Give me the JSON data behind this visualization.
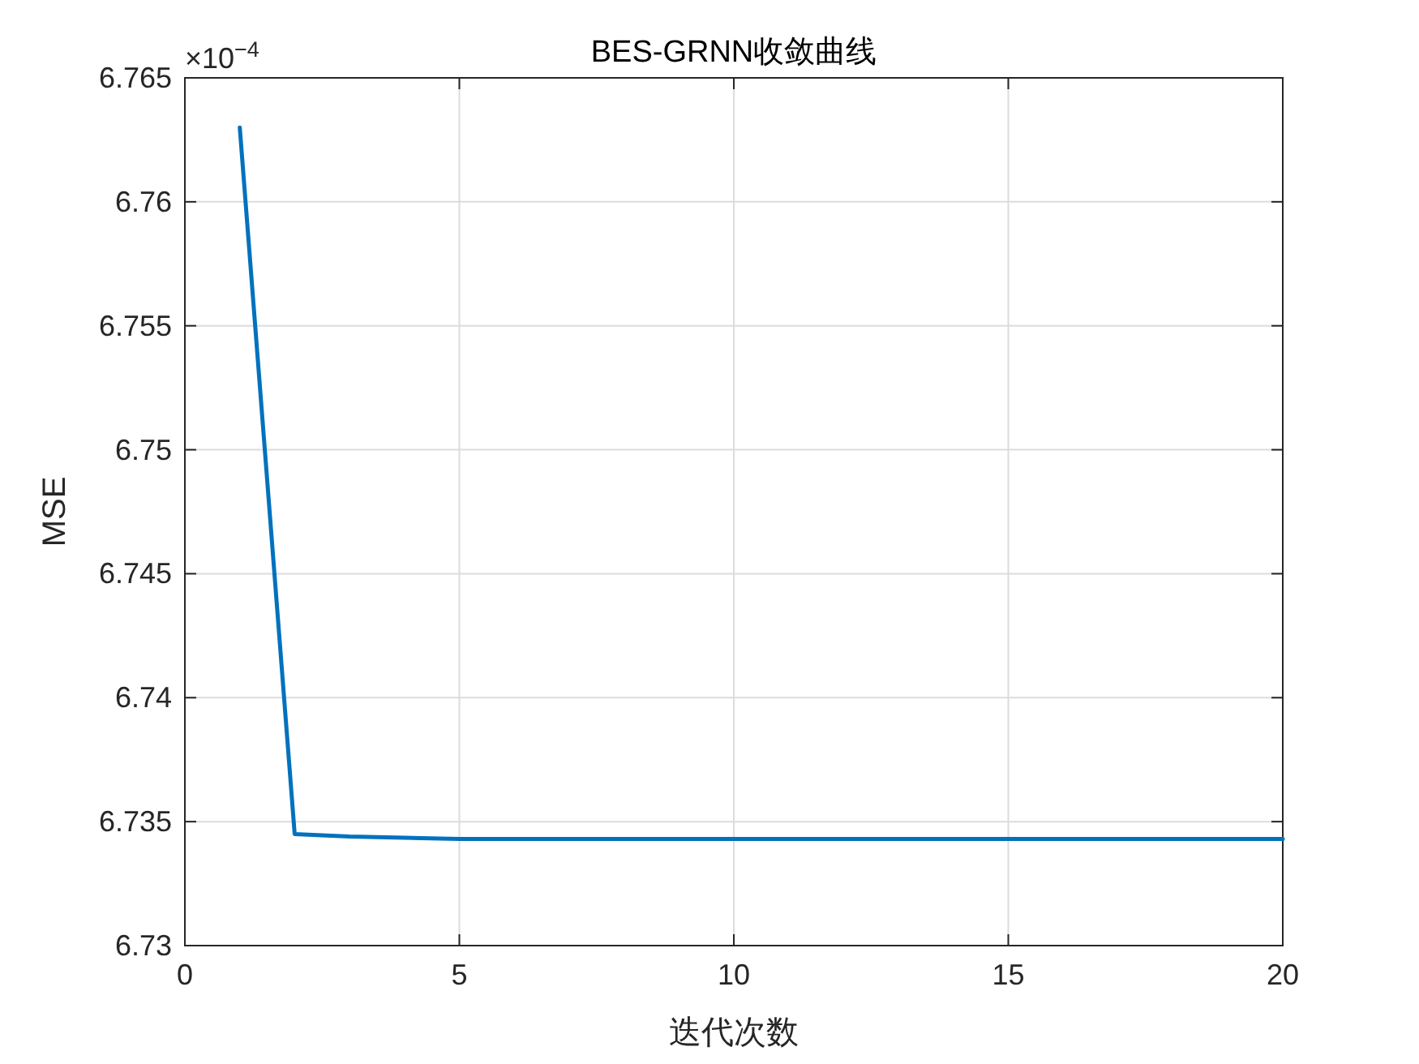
{
  "chart_data": {
    "type": "line",
    "title": "BES-GRNN收敛曲线",
    "xlabel": "迭代次数",
    "ylabel": "MSE",
    "annotations": [
      "×10$^{−4}$"
    ],
    "x": [
      1,
      2,
      3,
      4,
      5,
      6,
      7,
      8,
      9,
      10,
      11,
      12,
      13,
      14,
      15,
      16,
      17,
      18,
      19,
      20
    ],
    "series": [
      {
        "color": "#0072bd",
        "values": [
          6.763,
          6.7345,
          6.7344,
          6.73435,
          6.7343,
          6.7343,
          6.7343,
          6.7343,
          6.7343,
          6.7343,
          6.7343,
          6.7343,
          6.7343,
          6.7343,
          6.7343,
          6.7343,
          6.7343,
          6.7343,
          6.7343,
          6.7343
        ]
      }
    ],
    "xlim": [
      0,
      20
    ],
    "xticks": [
      0,
      5,
      10,
      15,
      20
    ],
    "ylim": [
      6.73,
      6.765
    ],
    "yticks": [
      6.73,
      6.735,
      6.74,
      6.745,
      6.75,
      6.755,
      6.76,
      6.765
    ],
    "grid": true,
    "marker": "none",
    "line_style": "solid"
  }
}
